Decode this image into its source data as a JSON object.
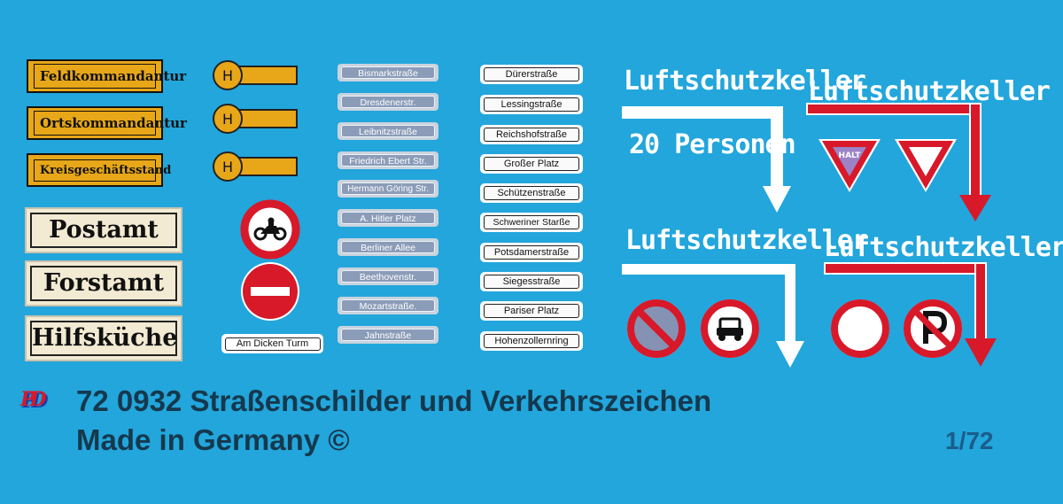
{
  "office_signs": [
    "Feldkommandantur",
    "Ortskommandantur",
    "Kreisgeschäftsstand"
  ],
  "office_signs_large": [
    "Postamt",
    "Forstamt",
    "Hilfsküche"
  ],
  "bus_stop_letter": "H",
  "gray_street_signs": [
    "Bismarkstraße",
    "Dresdenerstr.",
    "Leibnitzstraße",
    "Friedrich Ebert Str.",
    "Hermann Göring Str.",
    "A. Hitler Platz",
    "Berliner Allee",
    "Beethovenstr.",
    "Mozartstraße.",
    "Jahnstraße"
  ],
  "white_street_signs": [
    "Dürerstraße",
    "Lessingstraße",
    "Reichshofstraße",
    "Großer Platz",
    "Schützenstraße",
    "Schweriner Starße",
    "Potsdamerstraße",
    "Siegesstraße",
    "Pariser Platz",
    "Hohenzollernring"
  ],
  "extra_sign": "Am Dicken Turm",
  "shelter_word": "Luftschutzkeller",
  "shelter_capacity": "20 Personen",
  "halt_label": "HALT",
  "footer": {
    "line1": "72 0932 Straßenschilder und Verkehrszeichen",
    "line2": "Made in Germany ©",
    "scale": "1/72",
    "logo": "PD"
  },
  "colors": {
    "background": "#22a6dc",
    "sign_yellow": "#e8a718",
    "sign_red": "#d7192a",
    "footer_text": "#16384d"
  }
}
